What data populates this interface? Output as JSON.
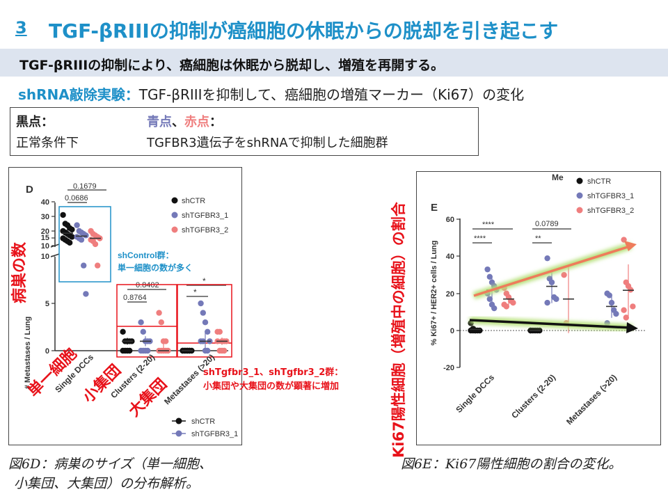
{
  "title": {
    "number": "3",
    "text": "TGF-βRIIIの抑制が癌細胞の休眠からの脱却を引き起こす"
  },
  "banner": "TGF-βRIIIの抑制により、癌細胞は休眠から脱却し、増殖を再開する。",
  "subtitle": {
    "emphasis": "shRNA敲除実験：",
    "text": "TGF-βRIIIを抑制して、癌細胞の増殖マーカー（Ki67）の変化"
  },
  "legend_box": {
    "black_label": "黒点：",
    "black_desc": "正常条件下",
    "blue_label": "青点",
    "sep": "、",
    "red_label": "赤点",
    "colon": "：",
    "colored_desc": "TGFBR3遺伝子をshRNAで抑制した細胞群"
  },
  "figD": {
    "panel_letter": "D",
    "ylabel": "# Metastases / Lung",
    "pvals": {
      "top1": "0.1679",
      "top2": "0.0686",
      "mid1": "0.8402",
      "mid2": "0.8764",
      "star1": "*",
      "star2": "*"
    },
    "legend": [
      "shCTR",
      "shTGFBR3_1",
      "shTGFBR3_2"
    ],
    "bottom_legend": [
      "shCTR",
      "shTGFBR3_1"
    ],
    "categories": [
      "Single DCCs",
      "Clusters (2-20)",
      "Metastases (>20)"
    ],
    "yticks_upper": [
      "40",
      "30",
      "20",
      "15",
      "10"
    ],
    "yticks_lower": [
      "10",
      "5",
      "0"
    ],
    "note1_line1": "shControl群：",
    "note1_line2": "単一細胞の数が多く",
    "note2_line1": "shTgfbr3_1、shTgfbr3_2群：",
    "note2_line2": "小集団や大集団の数が顕著に増加"
  },
  "figD_labels": {
    "lesion_count": "病巣の数",
    "single": "単一細胞",
    "small": "小集団",
    "large": "大集団"
  },
  "figE": {
    "panel_letter": "E",
    "ylabel": "% Ki67+ / HER2+ cells / Lung",
    "yticks": [
      "60",
      "40",
      "20",
      "0",
      "-20"
    ],
    "categories": [
      "Single DCCs",
      "Clusters (2-20)",
      "Metastases (>20)"
    ],
    "legend": [
      "shCTR",
      "shTGFBR3_1",
      "shTGFBR3_2"
    ],
    "clipped_text": "Me",
    "sig": {
      "s1": "****",
      "s2": "****",
      "c1": "0.0789",
      "c2": "**"
    }
  },
  "figE_side_label": "Ki67陽性細胞（増殖中の細胞）の割合",
  "captions": {
    "d_line1": "図6D：病巣のサイズ（単一細胞、",
    "d_line2": "小集団、大集団）の分布解析。",
    "e": "図6E：Ki67陽性細胞の割合の変化。"
  },
  "colors": {
    "accent_blue": "#1e90c8",
    "black_series": "#111111",
    "blue_series": "#7479b8",
    "red_series": "#ef7e7e",
    "highlight_red": "#e8121a",
    "banner_bg": "#dde4ef"
  },
  "chart_data": [
    {
      "type": "scatter",
      "panel": "D",
      "ylabel": "# Metastases / Lung",
      "categories": [
        "Single DCCs",
        "Clusters (2-20)",
        "Metastases (>20)"
      ],
      "series": [
        {
          "name": "shCTR",
          "values": [
            [
              31,
              25,
              24,
              22,
              21,
              20,
              19,
              18,
              17,
              16,
              15,
              14,
              13,
              12
            ],
            [
              2,
              1,
              1,
              1,
              1,
              0,
              0,
              0,
              0
            ],
            [
              0,
              0,
              0,
              0,
              0,
              0,
              0,
              0,
              0
            ]
          ]
        },
        {
          "name": "shTGFBR3_1",
          "values": [
            [
              24,
              20,
              19,
              18,
              17,
              16,
              15,
              14,
              9,
              6
            ],
            [
              3,
              2,
              1,
              1,
              1,
              0,
              0,
              0,
              0
            ],
            [
              5,
              4,
              3,
              2,
              1,
              1,
              1,
              0,
              0
            ]
          ]
        },
        {
          "name": "shTGFBR3_2",
          "values": [
            [
              20,
              18,
              17,
              16,
              15,
              14,
              13,
              11,
              9
            ],
            [
              4,
              3,
              1,
              1,
              0,
              0,
              0,
              0,
              0
            ],
            [
              2,
              2,
              1,
              1,
              1,
              1,
              0,
              0,
              0
            ]
          ]
        }
      ]
    },
    {
      "type": "scatter",
      "panel": "E",
      "ylabel": "% Ki67+ / HER2+ cells / Lung",
      "ylim": [
        -20,
        60
      ],
      "categories": [
        "Single DCCs",
        "Clusters (2-20)",
        "Metastases (>20)"
      ],
      "series": [
        {
          "name": "shCTR",
          "values": [
            [
              4,
              1,
              0,
              0,
              0,
              0,
              0,
              0
            ],
            [
              0,
              0,
              0,
              0,
              0,
              0
            ],
            []
          ]
        },
        {
          "name": "shTGFBR3_1",
          "values": [
            [
              33,
              29,
              26,
              24,
              22,
              20,
              17,
              14,
              12
            ],
            [
              39,
              28,
              26,
              18,
              17,
              15
            ],
            [
              20,
              19,
              15,
              11,
              9,
              4
            ]
          ]
        },
        {
          "name": "shTGFBR3_2",
          "values": [
            [
              23,
              20,
              18,
              16,
              15,
              14,
              13
            ],
            [
              30,
              4
            ],
            [
              49,
              26,
              24,
              22,
              13,
              11,
              7
            ]
          ]
        }
      ]
    }
  ]
}
